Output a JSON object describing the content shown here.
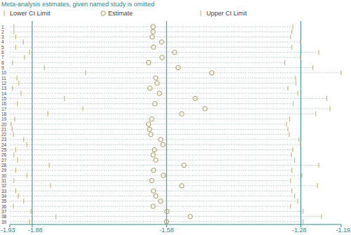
{
  "chart_data": {
    "type": "forest",
    "title": "Meta-analysis estimates, given named study is omitted",
    "categories": [
      "1",
      "2",
      "3",
      "4",
      "5",
      "6",
      "7",
      "8",
      "9",
      "10",
      "11",
      "12",
      "13",
      "14",
      "15",
      "16",
      "17",
      "18",
      "19",
      "20",
      "21",
      "22",
      "23",
      "24",
      "25",
      "26",
      "27",
      "28",
      "29",
      "30",
      "31",
      "32",
      "33",
      "34",
      "35",
      "36",
      "37",
      "38",
      "39"
    ],
    "series": [
      {
        "name": "Lower CI Limit",
        "color": "#c8b878",
        "marker": "bar",
        "values": [
          -1.921,
          -1.921,
          -1.917,
          -1.9,
          -1.917,
          -1.886,
          -1.897,
          -1.924,
          -1.853,
          -1.761,
          -1.914,
          -1.91,
          -1.924,
          -1.905,
          -1.808,
          -1.913,
          -1.767,
          -1.845,
          -1.919,
          -1.927,
          -1.925,
          -1.922,
          -1.899,
          -1.892,
          -1.917,
          -1.921,
          -1.913,
          -1.842,
          -1.917,
          -1.892,
          -1.921,
          -1.839,
          -1.917,
          -1.911,
          -1.899,
          -1.922,
          -1.883,
          -1.827,
          -1.886
        ]
      },
      {
        "name": "Estimate",
        "color": "#a89858",
        "marker": "circle",
        "values": [
          -1.61,
          -1.61,
          -1.612,
          -1.591,
          -1.609,
          -1.562,
          -1.59,
          -1.62,
          -1.554,
          -1.479,
          -1.604,
          -1.601,
          -1.617,
          -1.596,
          -1.516,
          -1.606,
          -1.494,
          -1.546,
          -1.613,
          -1.62,
          -1.618,
          -1.615,
          -1.593,
          -1.588,
          -1.607,
          -1.61,
          -1.604,
          -1.541,
          -1.609,
          -1.587,
          -1.613,
          -1.546,
          -1.609,
          -1.604,
          -1.593,
          -1.61,
          -1.579,
          -1.527,
          -1.58
        ]
      },
      {
        "name": "Upper CI Limit",
        "color": "#c8b878",
        "marker": "bar",
        "values": [
          -1.298,
          -1.3,
          -1.303,
          -1.281,
          -1.3,
          -1.24,
          -1.281,
          -1.316,
          -1.253,
          -1.19,
          -1.292,
          -1.291,
          -1.309,
          -1.287,
          -1.222,
          -1.297,
          -1.215,
          -1.247,
          -1.305,
          -1.312,
          -1.309,
          -1.306,
          -1.284,
          -1.281,
          -1.298,
          -1.301,
          -1.294,
          -1.24,
          -1.3,
          -1.278,
          -1.303,
          -1.243,
          -1.3,
          -1.294,
          -1.287,
          -1.303,
          -1.275,
          -1.234,
          -1.275
        ]
      }
    ],
    "xlim": [
      -1.93,
      -1.19
    ],
    "xticks": [
      -1.93,
      -1.88,
      -1.58,
      -1.28,
      -1.19
    ],
    "grid": true,
    "legend": "top"
  }
}
